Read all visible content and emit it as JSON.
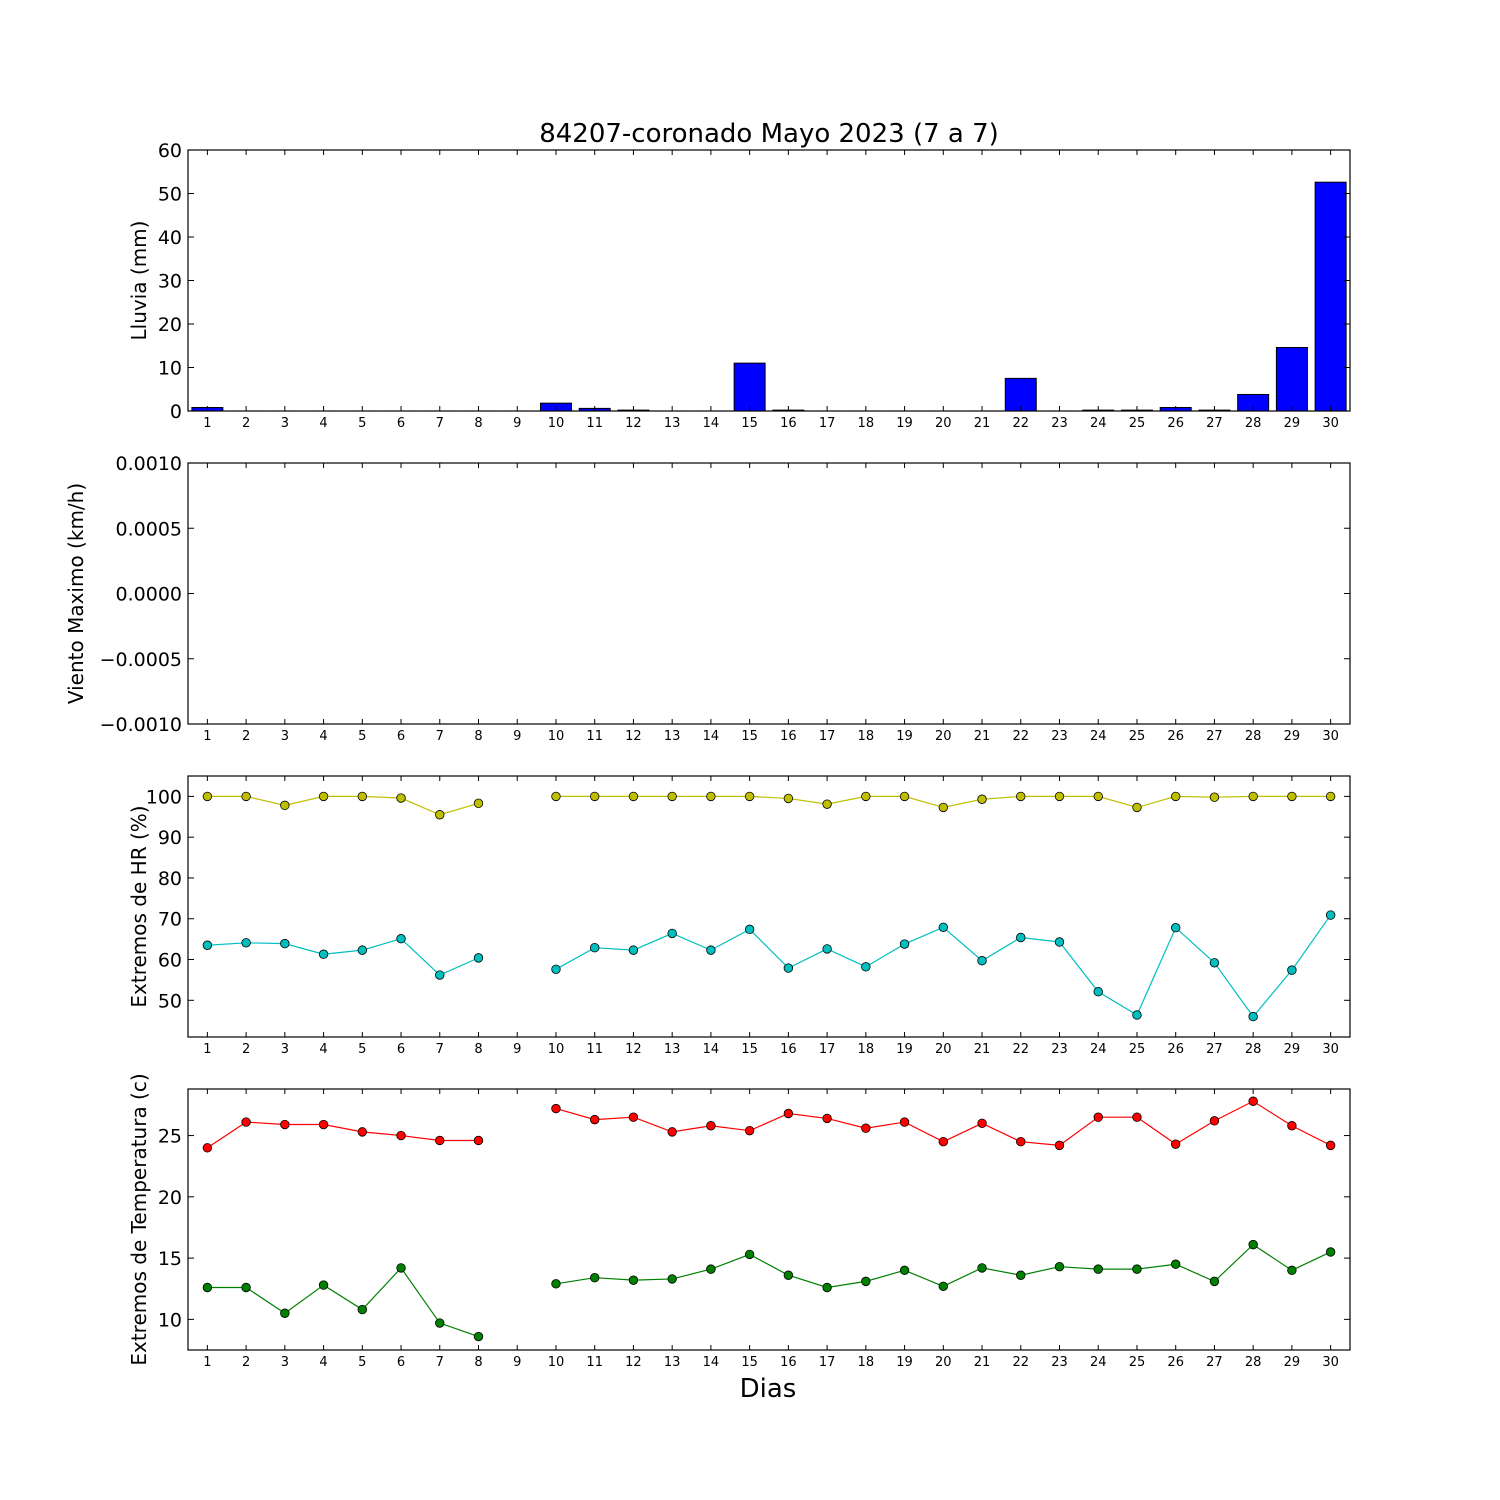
{
  "chart_data": [
    {
      "type": "bar",
      "title": "84207-coronado Mayo 2023  (7 a 7)",
      "ylabel": "Lluvia (mm)",
      "xlabel": "",
      "categories": [
        1,
        2,
        3,
        4,
        5,
        6,
        7,
        8,
        9,
        10,
        11,
        12,
        13,
        14,
        15,
        16,
        17,
        18,
        19,
        20,
        21,
        22,
        23,
        24,
        25,
        26,
        27,
        28,
        29,
        30
      ],
      "x_tick_labels": [
        "1",
        "2",
        "3",
        "4",
        "5",
        "6",
        "7",
        "8",
        "9",
        "10",
        "11",
        "12",
        "13",
        "14",
        "15",
        "16",
        "17",
        "18",
        "19",
        "20",
        "21",
        "22",
        "23",
        "24",
        "25",
        "26",
        "27",
        "28",
        "29",
        "30"
      ],
      "ylim": [
        0,
        60
      ],
      "y_ticks": [
        "0",
        "10",
        "20",
        "30",
        "40",
        "50",
        "60"
      ],
      "y_tick_values": [
        0,
        10,
        20,
        30,
        40,
        50,
        60
      ],
      "bar_color": "#0000ff",
      "values": [
        0.8,
        0,
        0,
        0,
        0,
        0,
        0,
        0,
        0,
        1.8,
        0.6,
        0.2,
        0,
        0,
        11.0,
        0.2,
        0,
        0,
        0,
        0,
        0,
        7.5,
        0,
        0.2,
        0.2,
        0.8,
        0.2,
        3.8,
        14.6,
        52.6
      ],
      "grid": false
    },
    {
      "type": "line",
      "ylabel": "Viento Maximo (km/h)",
      "xlabel": "",
      "x": [
        1,
        2,
        3,
        4,
        5,
        6,
        7,
        8,
        9,
        10,
        11,
        12,
        13,
        14,
        15,
        16,
        17,
        18,
        19,
        20,
        21,
        22,
        23,
        24,
        25,
        26,
        27,
        28,
        29,
        30
      ],
      "x_tick_labels": [
        "1",
        "2",
        "3",
        "4",
        "5",
        "6",
        "7",
        "8",
        "9",
        "10",
        "11",
        "12",
        "13",
        "14",
        "15",
        "16",
        "17",
        "18",
        "19",
        "20",
        "21",
        "22",
        "23",
        "24",
        "25",
        "26",
        "27",
        "28",
        "29",
        "30"
      ],
      "ylim": [
        -0.001,
        0.001
      ],
      "y_ticks": [
        "0.0010",
        "0.0005",
        "0.0000",
        "−0.0005",
        "−0.0010"
      ],
      "y_tick_values": [
        0.001,
        0.0005,
        0,
        -0.0005,
        -0.001
      ],
      "series": [],
      "grid": false
    },
    {
      "type": "line",
      "ylabel": "Extremos de HR (%)",
      "xlabel": "",
      "x": [
        1,
        2,
        3,
        4,
        5,
        6,
        7,
        8,
        9,
        10,
        11,
        12,
        13,
        14,
        15,
        16,
        17,
        18,
        19,
        20,
        21,
        22,
        23,
        24,
        25,
        26,
        27,
        28,
        29,
        30
      ],
      "x_tick_labels": [
        "1",
        "2",
        "3",
        "4",
        "5",
        "6",
        "7",
        "8",
        "9",
        "10",
        "11",
        "12",
        "13",
        "14",
        "15",
        "16",
        "17",
        "18",
        "19",
        "20",
        "21",
        "22",
        "23",
        "24",
        "25",
        "26",
        "27",
        "28",
        "29",
        "30"
      ],
      "ylim": [
        41,
        105
      ],
      "y_ticks": [
        "50",
        "60",
        "70",
        "80",
        "90",
        "100"
      ],
      "y_tick_values": [
        50,
        60,
        70,
        80,
        90,
        100
      ],
      "series": [
        {
          "color": "#bfbf00",
          "values": [
            100,
            100,
            97.8,
            100,
            100,
            99.6,
            95.5,
            98.3,
            null,
            100,
            100,
            100,
            100,
            100,
            100,
            99.5,
            98.1,
            100,
            100,
            97.3,
            99.3,
            100,
            100,
            100,
            97.3,
            100,
            99.8,
            100,
            100,
            100
          ]
        },
        {
          "color": "#00bfbf",
          "values": [
            63.5,
            64.1,
            63.9,
            61.3,
            62.3,
            65.1,
            56.2,
            60.4,
            null,
            57.6,
            62.9,
            62.3,
            66.4,
            62.3,
            67.4,
            57.9,
            62.6,
            58.2,
            63.8,
            67.9,
            59.7,
            65.4,
            64.3,
            52.1,
            46.4,
            67.8,
            59.2,
            46.0,
            57.4,
            70.9
          ]
        }
      ],
      "grid": false
    },
    {
      "type": "line",
      "ylabel": "Extremos de Temperatura (c)",
      "xlabel": "Dias",
      "x": [
        1,
        2,
        3,
        4,
        5,
        6,
        7,
        8,
        9,
        10,
        11,
        12,
        13,
        14,
        15,
        16,
        17,
        18,
        19,
        20,
        21,
        22,
        23,
        24,
        25,
        26,
        27,
        28,
        29,
        30
      ],
      "x_tick_labels": [
        "1",
        "2",
        "3",
        "4",
        "5",
        "6",
        "7",
        "8",
        "9",
        "10",
        "11",
        "12",
        "13",
        "14",
        "15",
        "16",
        "17",
        "18",
        "19",
        "20",
        "21",
        "22",
        "23",
        "24",
        "25",
        "26",
        "27",
        "28",
        "29",
        "30"
      ],
      "ylim": [
        7.5,
        28.8
      ],
      "y_ticks": [
        "10",
        "15",
        "20",
        "25"
      ],
      "y_tick_values": [
        10,
        15,
        20,
        25
      ],
      "series": [
        {
          "color": "#ff0000",
          "values": [
            24.0,
            26.1,
            25.9,
            25.9,
            25.3,
            25.0,
            24.6,
            24.6,
            null,
            27.2,
            26.3,
            26.5,
            25.3,
            25.8,
            25.4,
            26.8,
            26.4,
            25.6,
            26.1,
            24.5,
            26.0,
            24.5,
            24.2,
            26.5,
            26.5,
            24.3,
            26.2,
            27.8,
            25.8,
            24.2
          ]
        },
        {
          "color": "#008000",
          "values": [
            12.6,
            12.6,
            10.5,
            12.8,
            10.8,
            14.2,
            9.7,
            8.6,
            null,
            12.9,
            13.4,
            13.2,
            13.3,
            14.1,
            15.3,
            13.6,
            12.6,
            13.1,
            14.0,
            12.7,
            14.2,
            13.6,
            14.3,
            14.1,
            14.1,
            14.5,
            13.1,
            16.1,
            14.0,
            15.5
          ]
        }
      ],
      "grid": false
    }
  ]
}
